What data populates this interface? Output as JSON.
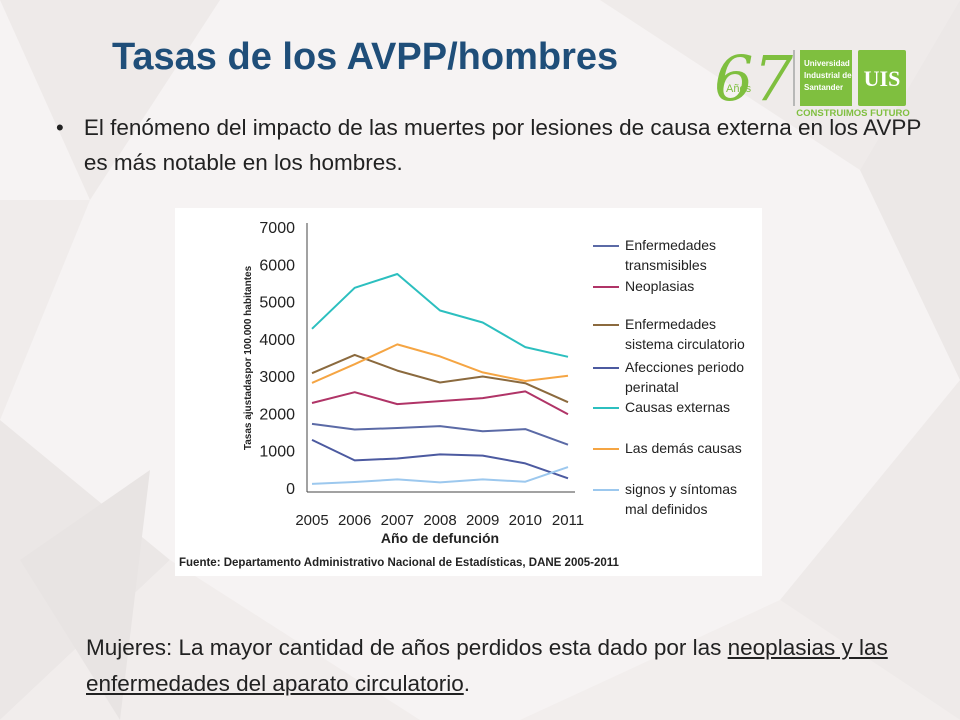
{
  "slide": {
    "title": "Tasas de los AVPP/hombres",
    "bullet": "El fenómeno del impacto de las muertes por lesiones de causa externa en los AVPP es más notable en los hombres.",
    "note_lead": "Mujeres: La mayor cantidad de años perdidos esta dado por las ",
    "note_underlined": "neoplasias y las enfermedades del aparato circulatorio",
    "note_end": "."
  },
  "logo": {
    "years_number": "67",
    "years_word": "Años",
    "university_line1": "Universidad",
    "university_line2": "Industrial de",
    "university_line3": "Santander",
    "acronym": "UIS",
    "tagline": "CONSTRUIMOS FUTURO",
    "colors": {
      "green": "#7fbf3f",
      "gray": "#a6a6a6"
    }
  },
  "chart_data": {
    "type": "line",
    "title": "",
    "xlabel": "Año de defunción",
    "ylabel": "Tasas ajustadaspor 100.000 habitantes",
    "x": [
      "2005",
      "2006",
      "2007",
      "2008",
      "2009",
      "2010",
      "2011"
    ],
    "ylim": [
      0,
      7000
    ],
    "yticks": [
      0,
      1000,
      2000,
      3000,
      4000,
      5000,
      6000,
      7000
    ],
    "grid": false,
    "legend_position": "right",
    "source": "Fuente: Departamento Administrativo Nacional de Estadísticas, DANE 2005-2011",
    "series": [
      {
        "name": "Enfermedades transmisibles",
        "legend": [
          "Enfermedades",
          "transmisibles"
        ],
        "color": "#5b6aa6",
        "values": [
          1720,
          1570,
          1610,
          1660,
          1520,
          1580,
          1160
        ]
      },
      {
        "name": "Neoplasias",
        "legend": [
          "Neoplasias"
        ],
        "color": "#b03467",
        "values": [
          2280,
          2570,
          2250,
          2330,
          2410,
          2590,
          1980
        ]
      },
      {
        "name": "Enfermedades sistema circulatorio",
        "legend": [
          "Enfermedades",
          "sistema circulatorio"
        ],
        "color": "#8b6a3e",
        "values": [
          3080,
          3570,
          3150,
          2830,
          2990,
          2810,
          2300
        ]
      },
      {
        "name": "Afecciones periodo perinatal",
        "legend": [
          "Afecciones periodo",
          "perinatal"
        ],
        "color": "#4c5aa0",
        "values": [
          1290,
          740,
          790,
          900,
          870,
          660,
          260
        ]
      },
      {
        "name": "Causas externas",
        "legend": [
          "Causas externas"
        ],
        "color": "#2cbfbf",
        "values": [
          4270,
          5370,
          5740,
          4760,
          4440,
          3780,
          3520
        ]
      },
      {
        "name": "Las demás causas",
        "legend": [
          "Las demás causas"
        ],
        "color": "#f5a543",
        "values": [
          2820,
          3320,
          3850,
          3530,
          3100,
          2870,
          3010
        ]
      },
      {
        "name": "signos y síntomas mal definidos",
        "legend": [
          "signos y síntomas",
          "mal definidos"
        ],
        "color": "#9cc8ee",
        "values": [
          110,
          160,
          230,
          150,
          230,
          170,
          560
        ]
      }
    ]
  }
}
